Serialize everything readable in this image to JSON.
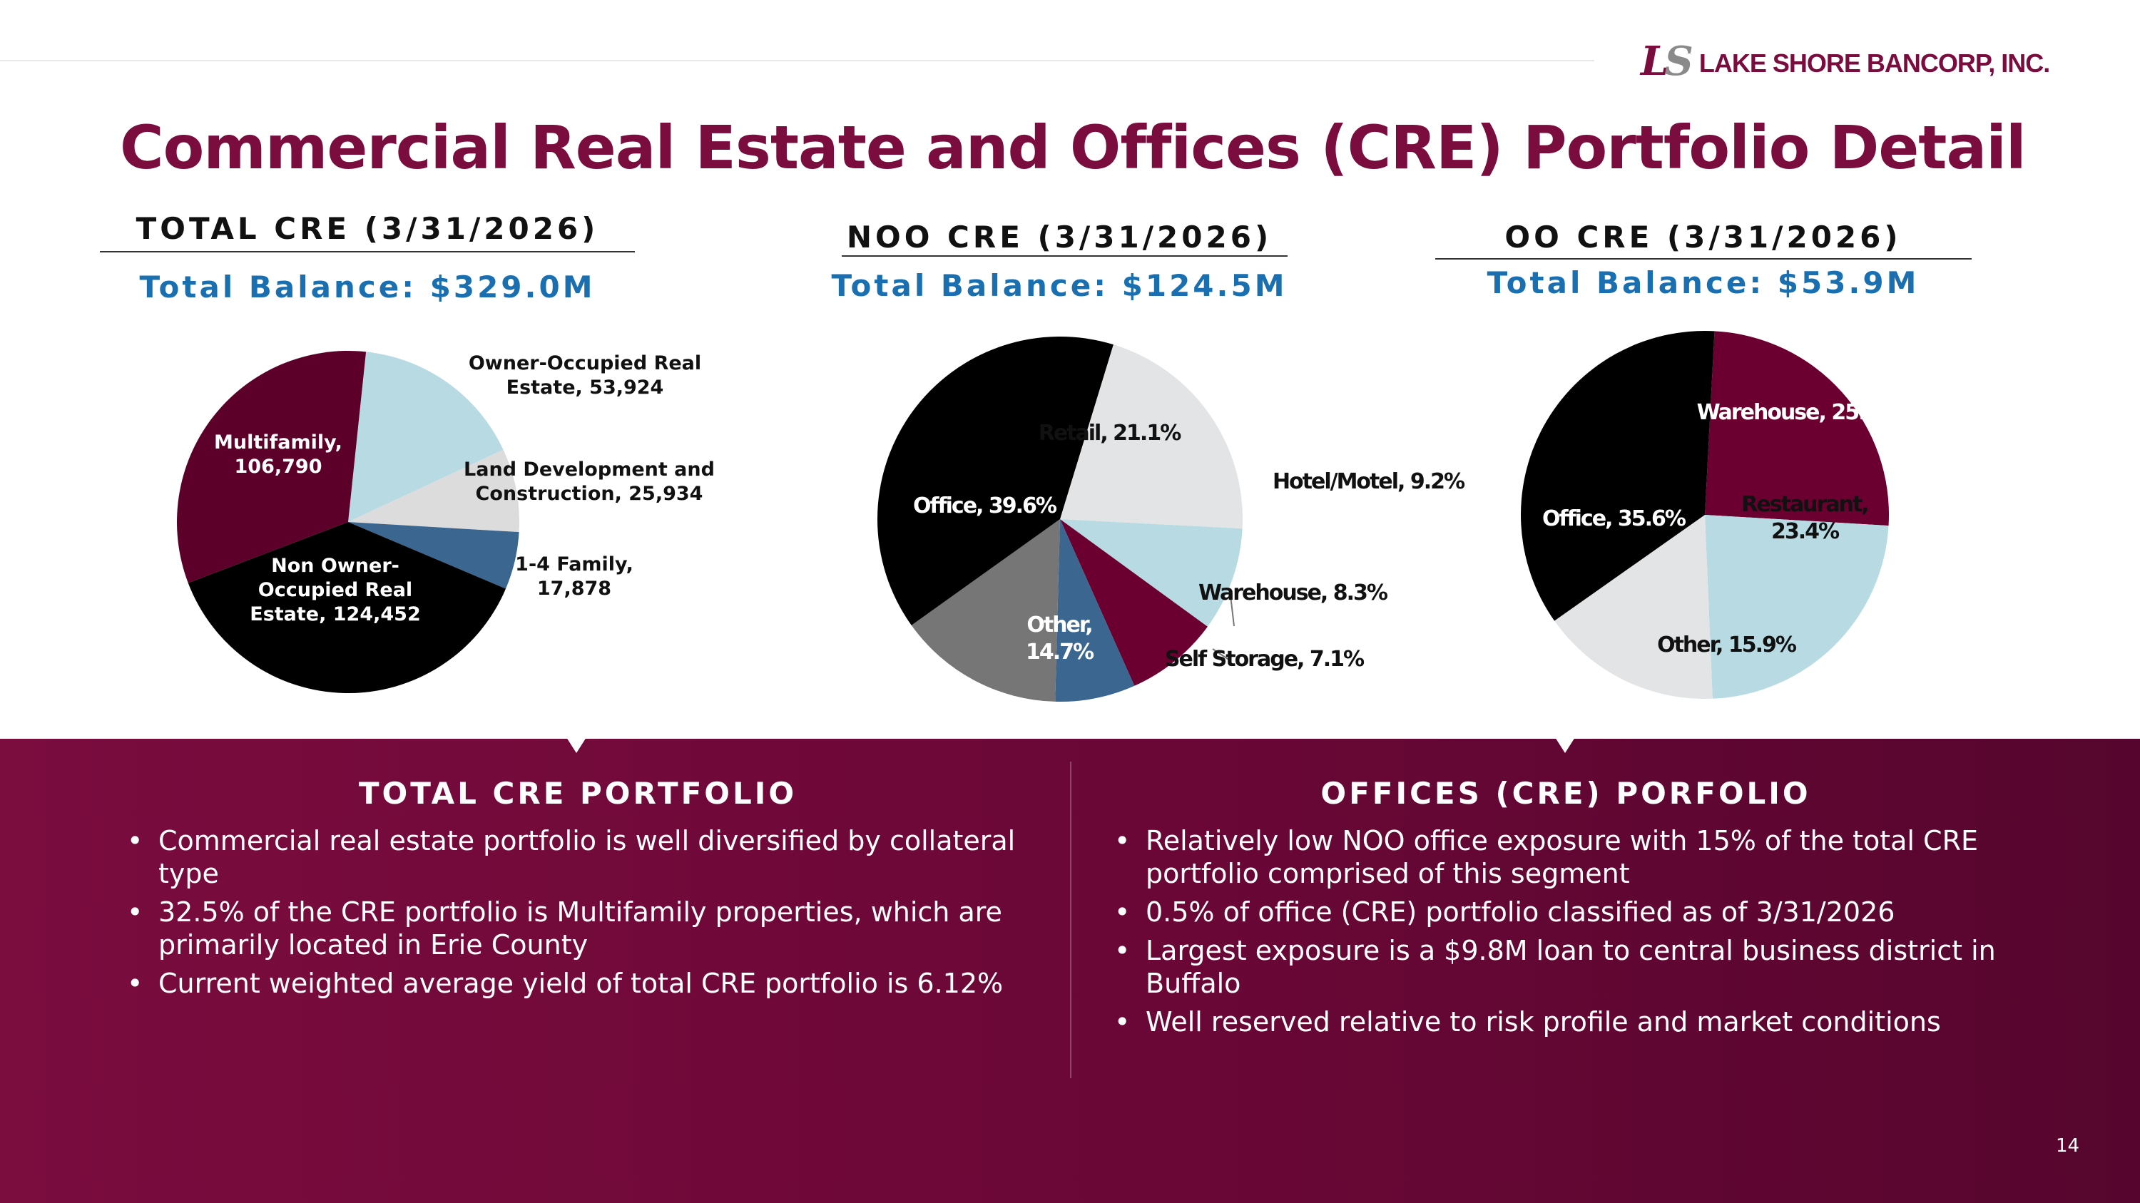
{
  "logo": {
    "mark_left": "L",
    "mark_right": "S",
    "text": "LAKE SHORE BANCORP, INC."
  },
  "title": "Commercial Real Estate and Offices (CRE) Portfolio Detail",
  "charts": [
    {
      "heading": "TOTAL CRE (3/31/2026)",
      "balance": "Total Balance: $329.0M"
    },
    {
      "heading": "NOO CRE (3/31/2026)",
      "balance": "Total Balance: $124.5M"
    },
    {
      "heading": "OO CRE (3/31/2026)",
      "balance": "Total Balance: $53.9M"
    }
  ],
  "chart_data": [
    {
      "type": "pie",
      "title": "TOTAL CRE (3/31/2026)",
      "subtitle": "Total Balance: $329.0M",
      "slices": [
        {
          "label_lines": [
            "Owner-Occupied Real",
            "Estate, 53,924"
          ],
          "value": 53924,
          "color": "#b8dbe3",
          "label_color": "#111111"
        },
        {
          "label_lines": [
            "Land Development and",
            "Construction, 25,934"
          ],
          "value": 25934,
          "color": "#dcdcdc",
          "label_color": "#111111"
        },
        {
          "label_lines": [
            "1-4 Family,",
            "17,878"
          ],
          "value": 17878,
          "color": "#3a6690",
          "label_color": "#111111"
        },
        {
          "label_lines": [
            "Non Owner-",
            "Occupied Real",
            "Estate, 124,452"
          ],
          "value": 124452,
          "color": "#000000",
          "label_color": "#ffffff"
        },
        {
          "label_lines": [
            "Multifamily,",
            "106,790"
          ],
          "value": 106790,
          "color": "#5c0029",
          "label_color": "#ffffff"
        }
      ]
    },
    {
      "type": "pie",
      "title": "NOO CRE (3/31/2026)",
      "subtitle": "Total Balance: $124.5M",
      "slices": [
        {
          "label_lines": [
            "Retail, 21.1%"
          ],
          "value": 21.1,
          "color": "#e3e4e6",
          "label_color": "#111111"
        },
        {
          "label_lines": [
            "Hotel/Motel, 9.2%"
          ],
          "value": 9.2,
          "color": "#b8dbe3",
          "label_color": "#111111"
        },
        {
          "label_lines": [
            "Warehouse, 8.3%"
          ],
          "value": 8.3,
          "color": "#6b0030",
          "label_color": "#111111"
        },
        {
          "label_lines": [
            "Self Storage, 7.1%"
          ],
          "value": 7.1,
          "color": "#3a6690",
          "label_color": "#111111"
        },
        {
          "label_lines": [
            "Other,",
            "14.7%"
          ],
          "value": 14.7,
          "color": "#767676",
          "label_color": "#ffffff"
        },
        {
          "label_lines": [
            "Office, 39.6%"
          ],
          "value": 39.6,
          "color": "#000000",
          "label_color": "#ffffff"
        }
      ]
    },
    {
      "type": "pie",
      "title": "OO CRE (3/31/2026)",
      "subtitle": "Total Balance: $53.9M",
      "slices": [
        {
          "label_lines": [
            "Warehouse, 25.1%"
          ],
          "value": 25.1,
          "color": "#6b0030",
          "label_color": "#ffffff"
        },
        {
          "label_lines": [
            "Restaurant,",
            "23.4%"
          ],
          "value": 23.4,
          "color": "#b8dbe3",
          "label_color": "#111111"
        },
        {
          "label_lines": [
            "Other, 15.9%"
          ],
          "value": 15.9,
          "color": "#e3e4e6",
          "label_color": "#111111"
        },
        {
          "label_lines": [
            "Office, 35.6%"
          ],
          "value": 35.6,
          "color": "#000000",
          "label_color": "#ffffff"
        }
      ]
    }
  ],
  "sections": [
    {
      "title": "TOTAL CRE PORTFOLIO",
      "bullets": [
        "Commercial real estate portfolio is well diversified by collateral type",
        "32.5% of the CRE portfolio is Multifamily properties, which are primarily located in Erie County",
        "Current weighted average yield of total CRE portfolio is 6.12%"
      ]
    },
    {
      "title": "OFFICES (CRE) PORFOLIO",
      "bullets": [
        "Relatively low NOO office exposure with 15% of the total CRE portfolio comprised of this segment",
        "0.5% of office (CRE) portfolio classified as of 3/31/2026",
        "Largest exposure is a $9.8M loan to central business district in Buffalo",
        "Well reserved relative to risk profile and market conditions"
      ]
    }
  ],
  "page_number": "14",
  "colors": {
    "brand": "#7a0c3e",
    "balance_blue": "#1a6fb0"
  }
}
